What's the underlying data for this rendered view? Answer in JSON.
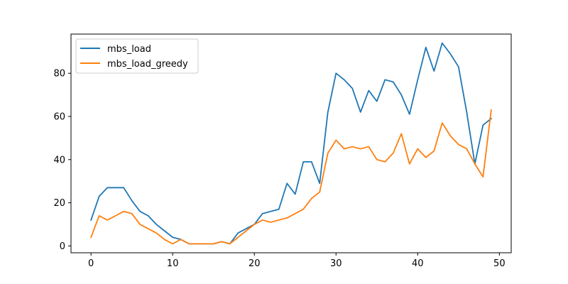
{
  "chart_data": {
    "type": "line",
    "title": "",
    "xlabel": "",
    "ylabel": "",
    "xlim": [
      -2.45,
      51.45
    ],
    "ylim": [
      -3.15,
      98.15
    ],
    "xticks": [
      0,
      10,
      20,
      30,
      40,
      50
    ],
    "yticks": [
      0,
      20,
      40,
      60,
      80
    ],
    "grid": false,
    "legend_position": "top-left",
    "x": [
      0,
      1,
      2,
      3,
      4,
      5,
      6,
      7,
      8,
      9,
      10,
      11,
      12,
      13,
      14,
      15,
      16,
      17,
      18,
      19,
      20,
      21,
      22,
      23,
      24,
      25,
      26,
      27,
      28,
      29,
      30,
      31,
      32,
      33,
      34,
      35,
      36,
      37,
      38,
      39,
      40,
      41,
      42,
      43,
      44,
      45,
      46,
      47,
      48,
      49
    ],
    "series": [
      {
        "name": "mbs_load",
        "color": "#1f77b4",
        "values": [
          12,
          23,
          27,
          27,
          27,
          21,
          16,
          14,
          10,
          7,
          4,
          3,
          1,
          1,
          1,
          1,
          2,
          1,
          6,
          8,
          10,
          15,
          16,
          17,
          29,
          24,
          39,
          39,
          29,
          62,
          80,
          77,
          73,
          62,
          72,
          67,
          77,
          76,
          70,
          61,
          77,
          92,
          81,
          94,
          89,
          83,
          62,
          38,
          56,
          59
        ]
      },
      {
        "name": "mbs_load_greedy",
        "color": "#ff7f0e",
        "values": [
          4,
          14,
          12,
          14,
          16,
          15,
          10,
          8,
          6,
          3,
          1,
          3,
          1,
          1,
          1,
          1,
          2,
          1,
          4,
          7,
          10,
          12,
          11,
          12,
          13,
          15,
          17,
          22,
          25,
          43,
          49,
          45,
          46,
          45,
          46,
          40,
          39,
          43,
          52,
          38,
          45,
          41,
          44,
          57,
          51,
          47,
          45,
          38,
          32,
          63
        ]
      }
    ]
  }
}
